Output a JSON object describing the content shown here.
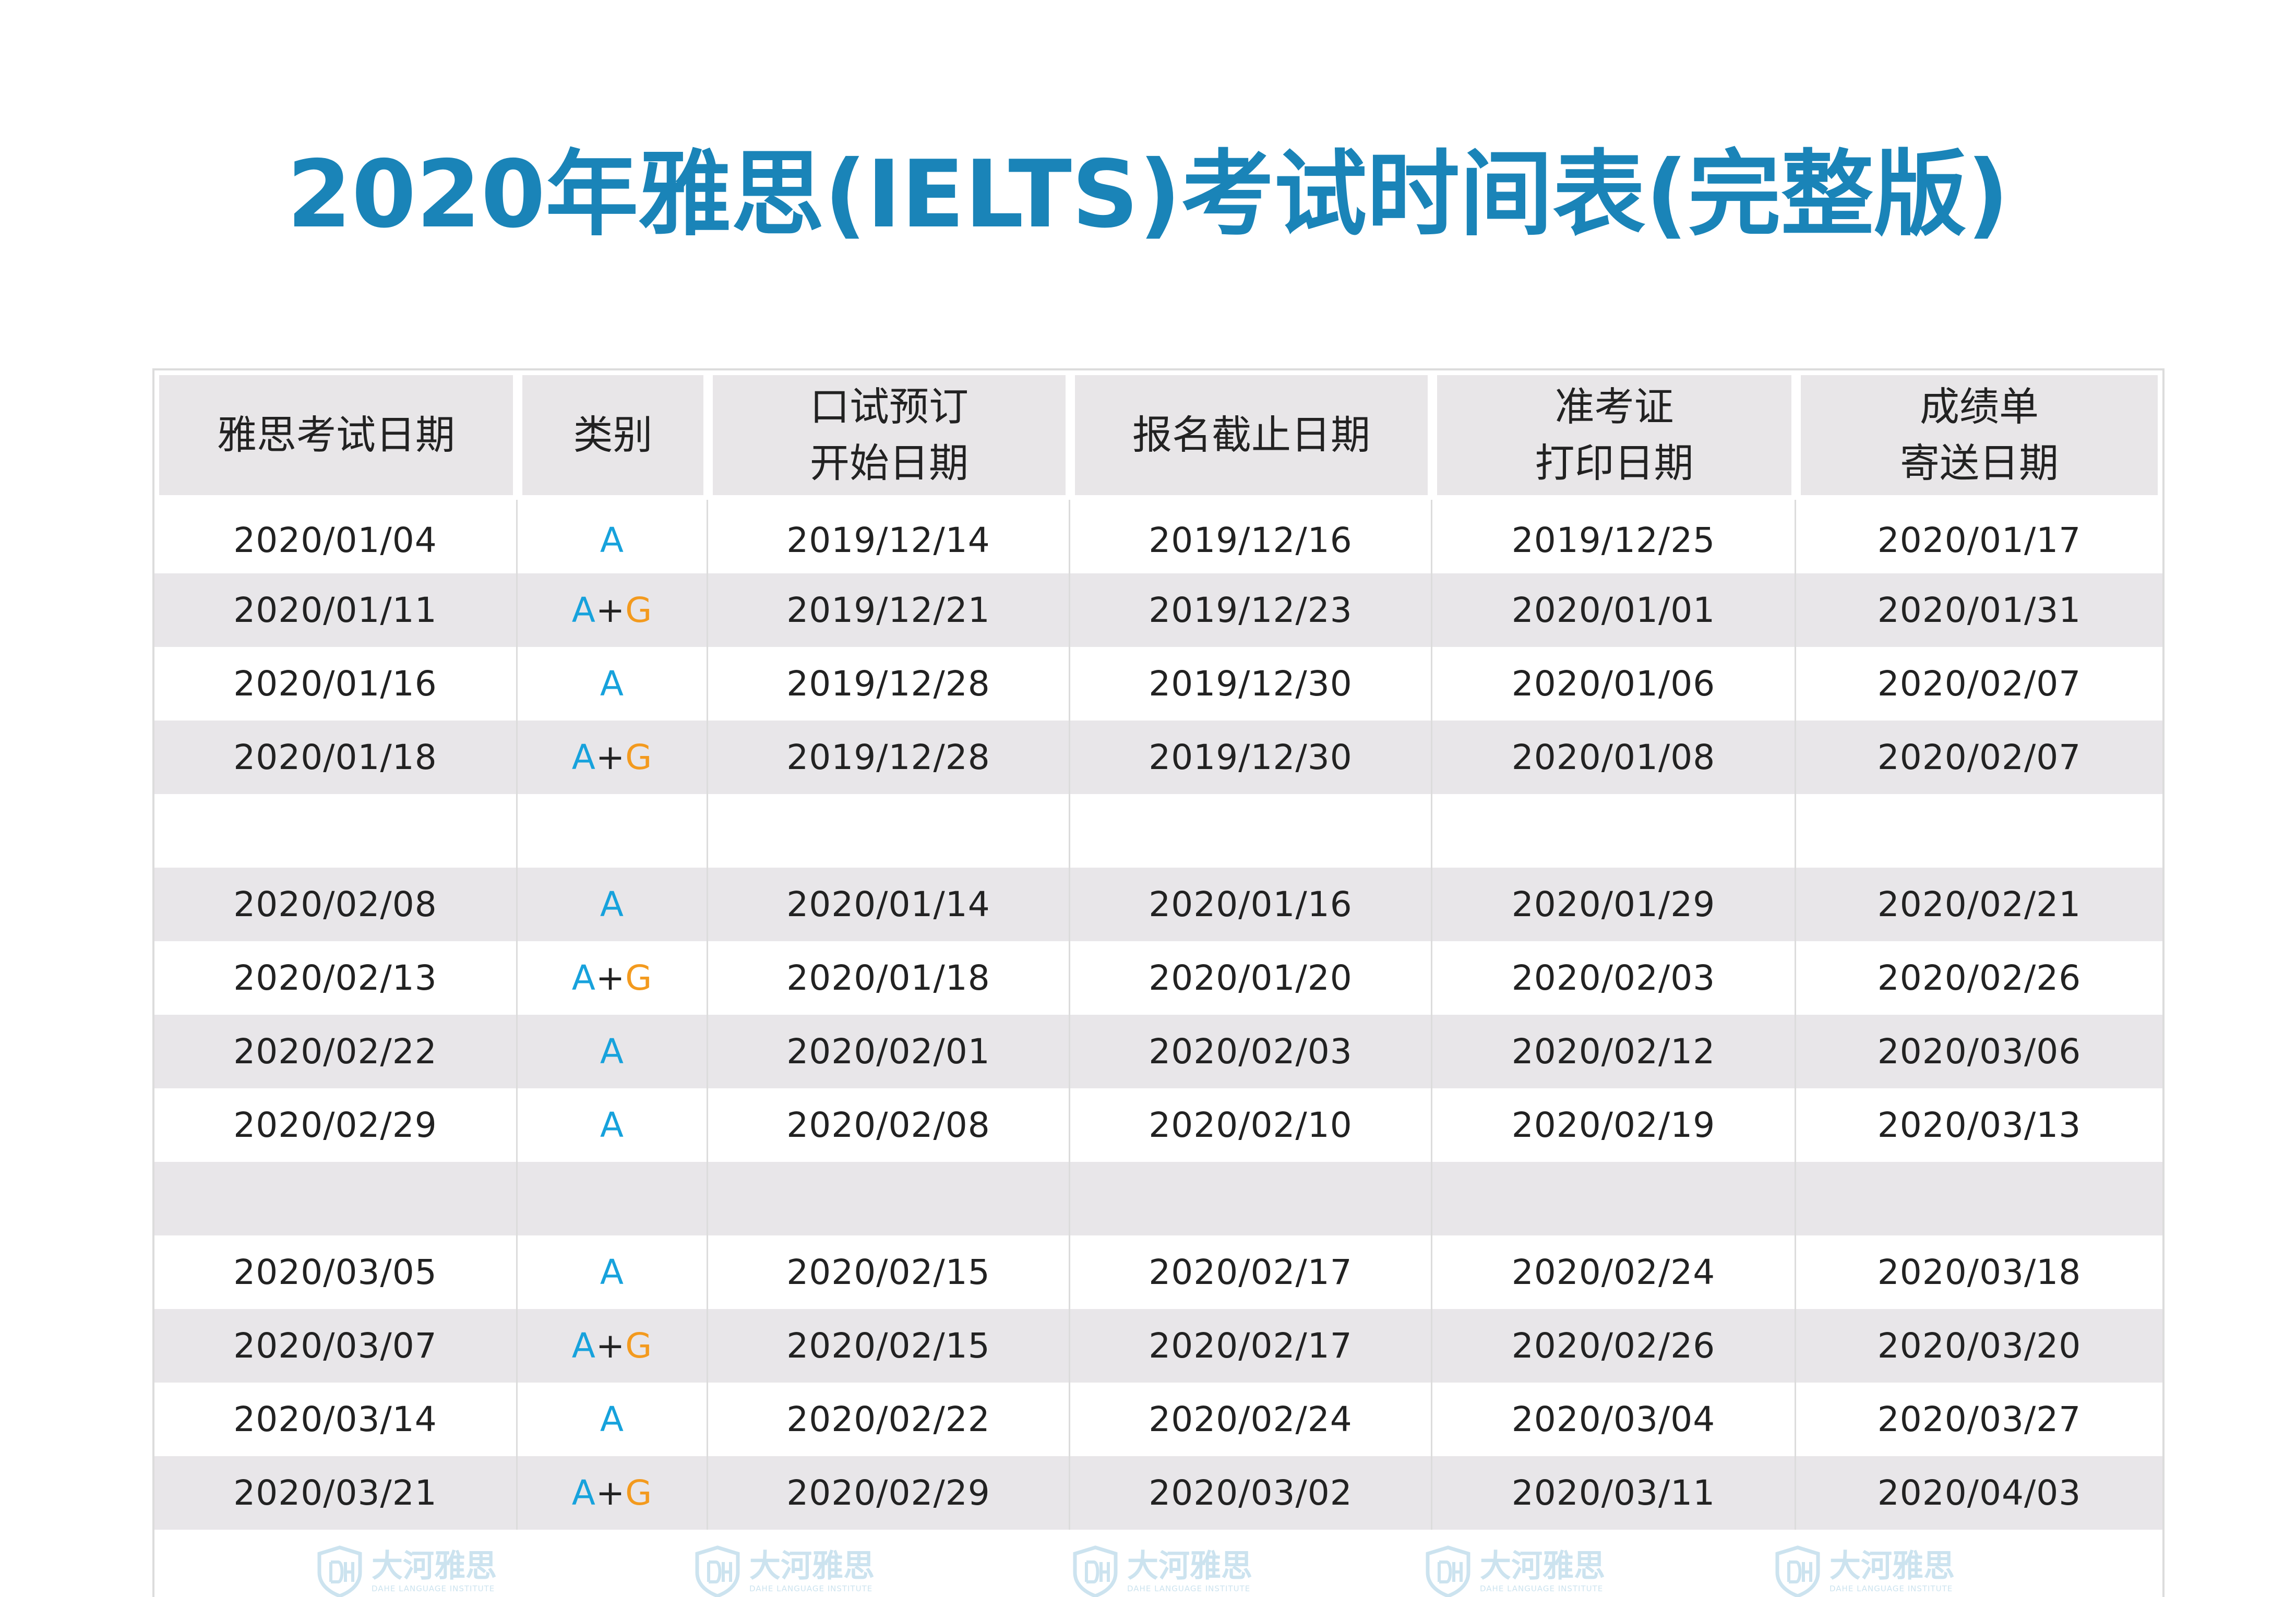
{
  "title": "2020年雅思(IELTS)考试时间表(完整版)",
  "colors": {
    "title": "#1a84b8",
    "category_a": "#17a2dc",
    "category_g": "#f39a1e",
    "header_bg": "#e8e6e8",
    "row_shade": "#e8e6e9"
  },
  "table": {
    "headers": [
      {
        "lines": [
          "雅思考试日期"
        ]
      },
      {
        "lines": [
          "类别"
        ]
      },
      {
        "lines": [
          "口试预订",
          "开始日期"
        ]
      },
      {
        "lines": [
          "报名截止日期"
        ]
      },
      {
        "lines": [
          "准考证",
          "打印日期"
        ]
      },
      {
        "lines": [
          "成绩单",
          "寄送日期"
        ]
      }
    ],
    "rows": [
      {
        "exam": "2020/01/04",
        "cat": "A",
        "speaking": "2019/12/14",
        "deadline": "2019/12/16",
        "admission": "2019/12/25",
        "transcript": "2020/01/17"
      },
      {
        "exam": "2020/01/11",
        "cat": "A+G",
        "speaking": "2019/12/21",
        "deadline": "2019/12/23",
        "admission": "2020/01/01",
        "transcript": "2020/01/31"
      },
      {
        "exam": "2020/01/16",
        "cat": "A",
        "speaking": "2019/12/28",
        "deadline": "2019/12/30",
        "admission": "2020/01/06",
        "transcript": "2020/02/07"
      },
      {
        "exam": "2020/01/18",
        "cat": "A+G",
        "speaking": "2019/12/28",
        "deadline": "2019/12/30",
        "admission": "2020/01/08",
        "transcript": "2020/02/07"
      },
      {
        "exam": "",
        "cat": "",
        "speaking": "",
        "deadline": "",
        "admission": "",
        "transcript": ""
      },
      {
        "exam": "2020/02/08",
        "cat": "A",
        "speaking": "2020/01/14",
        "deadline": "2020/01/16",
        "admission": "2020/01/29",
        "transcript": "2020/02/21"
      },
      {
        "exam": "2020/02/13",
        "cat": "A+G",
        "speaking": "2020/01/18",
        "deadline": "2020/01/20",
        "admission": "2020/02/03",
        "transcript": "2020/02/26"
      },
      {
        "exam": "2020/02/22",
        "cat": "A",
        "speaking": "2020/02/01",
        "deadline": "2020/02/03",
        "admission": "2020/02/12",
        "transcript": "2020/03/06"
      },
      {
        "exam": "2020/02/29",
        "cat": "A",
        "speaking": "2020/02/08",
        "deadline": "2020/02/10",
        "admission": "2020/02/19",
        "transcript": "2020/03/13"
      },
      {
        "exam": "",
        "cat": "",
        "speaking": "",
        "deadline": "",
        "admission": "",
        "transcript": ""
      },
      {
        "exam": "2020/03/05",
        "cat": "A",
        "speaking": "2020/02/15",
        "deadline": "2020/02/17",
        "admission": "2020/02/24",
        "transcript": "2020/03/18"
      },
      {
        "exam": "2020/03/07",
        "cat": "A+G",
        "speaking": "2020/02/15",
        "deadline": "2020/02/17",
        "admission": "2020/02/26",
        "transcript": "2020/03/20"
      },
      {
        "exam": "2020/03/14",
        "cat": "A",
        "speaking": "2020/02/22",
        "deadline": "2020/02/24",
        "admission": "2020/03/04",
        "transcript": "2020/03/27"
      },
      {
        "exam": "2020/03/21",
        "cat": "A+G",
        "speaking": "2020/02/29",
        "deadline": "2020/03/02",
        "admission": "2020/03/11",
        "transcript": "2020/04/03"
      }
    ]
  },
  "watermark": {
    "name": "大河雅思",
    "subtitle": "DAHE LANGUAGE INSTITUTE",
    "icon": "shield-dh-logo-icon"
  }
}
